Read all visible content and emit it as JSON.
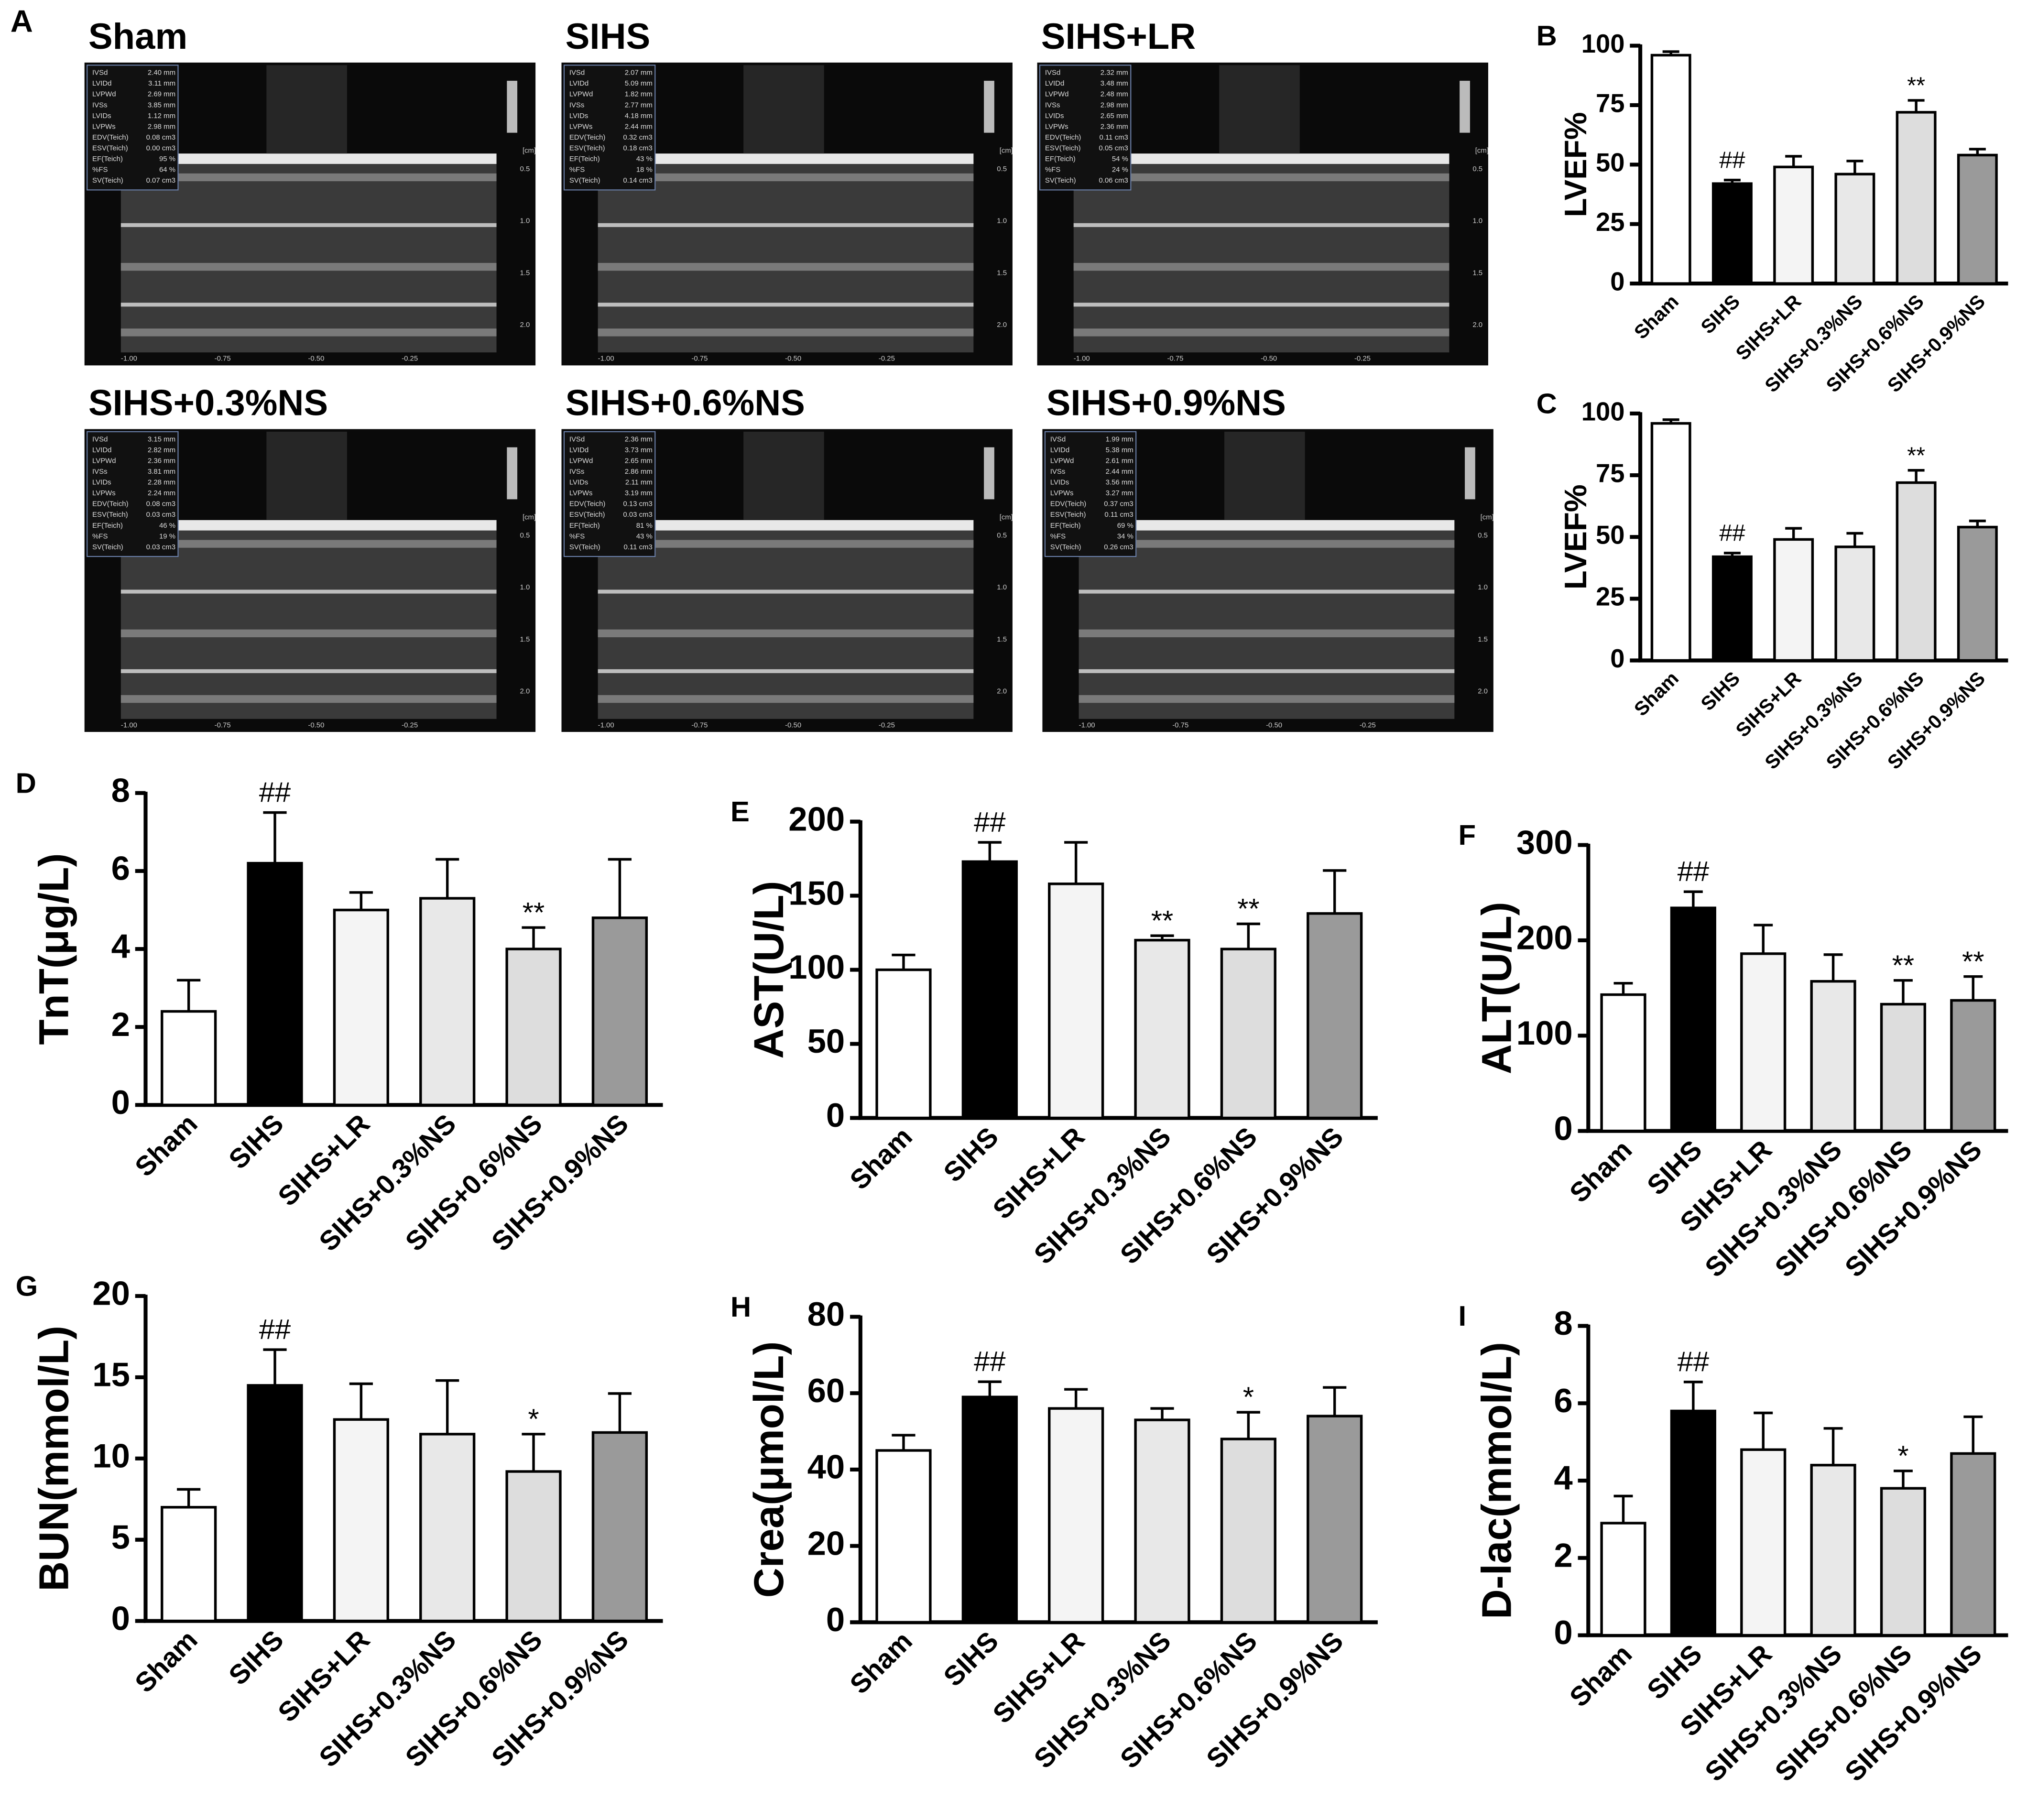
{
  "panel_a": {
    "label": "A",
    "measures": [
      "IVSd",
      "LVIDd",
      "LVPWd",
      "IVSs",
      "LVIDs",
      "LVPWs",
      "EDV(Teich)",
      "ESV(Teich)",
      "EF(Teich)",
      "%FS",
      "SV(Teich)"
    ],
    "depth_unit": "[cm]",
    "depth_ticks": [
      "0.5",
      "1.0",
      "1.5",
      "2.0"
    ],
    "time_ticks": [
      "-1.00",
      "-0.75",
      "-0.50",
      "-0.25"
    ],
    "images": [
      {
        "title": "Sham",
        "readings": [
          "2.40 mm",
          "3.11 mm",
          "2.69 mm",
          "3.85 mm",
          "1.12 mm",
          "2.98 mm",
          "0.08 cm3",
          "0.00 cm3",
          "95 %",
          "64 %",
          "0.07 cm3"
        ]
      },
      {
        "title": "SIHS",
        "readings": [
          "2.07 mm",
          "5.09 mm",
          "1.82 mm",
          "2.77 mm",
          "4.18 mm",
          "2.44 mm",
          "0.32 cm3",
          "0.18 cm3",
          "43 %",
          "18 %",
          "0.14 cm3"
        ]
      },
      {
        "title": "SIHS+LR",
        "readings": [
          "2.32 mm",
          "3.48 mm",
          "2.48 mm",
          "2.98 mm",
          "2.65 mm",
          "2.36 mm",
          "0.11 cm3",
          "0.05 cm3",
          "54 %",
          "24 %",
          "0.06 cm3"
        ]
      },
      {
        "title": "SIHS+0.3%NS",
        "readings": [
          "3.15 mm",
          "2.82 mm",
          "2.36 mm",
          "3.81 mm",
          "2.28 mm",
          "2.24 mm",
          "0.08 cm3",
          "0.03 cm3",
          "46 %",
          "19 %",
          "0.03 cm3"
        ]
      },
      {
        "title": "SIHS+0.6%NS",
        "readings": [
          "2.36 mm",
          "3.73 mm",
          "2.65 mm",
          "2.86 mm",
          "2.11 mm",
          "3.19 mm",
          "0.13 cm3",
          "0.03 cm3",
          "81 %",
          "43 %",
          "0.11 cm3"
        ]
      },
      {
        "title": "SIHS+0.9%NS",
        "readings": [
          "1.99 mm",
          "5.38 mm",
          "2.61 mm",
          "2.44 mm",
          "3.56 mm",
          "3.27 mm",
          "0.37 cm3",
          "0.11 cm3",
          "69 %",
          "34 %",
          "0.26 cm3"
        ]
      }
    ]
  },
  "chart_data": [
    {
      "type": "bar",
      "panel": "B",
      "y_label": "LVEF%",
      "categories": [
        "Sham",
        "SIHS",
        "SIHS+LR",
        "SIHS+0.3%NS",
        "SIHS+0.6%NS",
        "SIHS+0.9%NS"
      ],
      "values": [
        96,
        42,
        49,
        46,
        72,
        54
      ],
      "errors": [
        1.5,
        1.5,
        4.5,
        5.5,
        5,
        2.5
      ],
      "annotations": [
        null,
        "##",
        null,
        null,
        "**",
        null
      ],
      "colors": [
        "#ffffff",
        "#000000",
        "#f4f4f4",
        "#e8e8e8",
        "#dddddd",
        "#9a9a9a"
      ],
      "ylim": [
        0,
        100
      ],
      "yticks": [
        0,
        25,
        50,
        75,
        100
      ]
    },
    {
      "type": "bar",
      "panel": "C",
      "y_label": "LVEF%",
      "categories": [
        "Sham",
        "SIHS",
        "SIHS+LR",
        "SIHS+0.3%NS",
        "SIHS+0.6%NS",
        "SIHS+0.9%NS"
      ],
      "values": [
        96,
        42,
        49,
        46,
        72,
        54
      ],
      "errors": [
        1.5,
        1.5,
        4.5,
        5.5,
        5,
        2.5
      ],
      "annotations": [
        null,
        "##",
        null,
        null,
        "**",
        null
      ],
      "colors": [
        "#ffffff",
        "#000000",
        "#f4f4f4",
        "#e8e8e8",
        "#dddddd",
        "#9a9a9a"
      ],
      "ylim": [
        0,
        100
      ],
      "yticks": [
        0,
        25,
        50,
        75,
        100
      ]
    },
    {
      "type": "bar",
      "panel": "D",
      "y_label": "TnT(μg/L)",
      "categories": [
        "Sham",
        "SIHS",
        "SIHS+LR",
        "SIHS+0.3%NS",
        "SIHS+0.6%NS",
        "SIHS+0.9%NS"
      ],
      "values": [
        2.4,
        6.2,
        5.0,
        5.3,
        4.0,
        4.8
      ],
      "errors": [
        0.8,
        1.3,
        0.45,
        1.0,
        0.55,
        1.5
      ],
      "annotations": [
        null,
        "##",
        null,
        null,
        "**",
        null
      ],
      "colors": [
        "#ffffff",
        "#000000",
        "#f4f4f4",
        "#e8e8e8",
        "#dddddd",
        "#9a9a9a"
      ],
      "ylim": [
        0,
        8
      ],
      "yticks": [
        0,
        2,
        4,
        6,
        8
      ]
    },
    {
      "type": "bar",
      "panel": "E",
      "y_label": "AST(U/L)",
      "categories": [
        "Sham",
        "SIHS",
        "SIHS+LR",
        "SIHS+0.3%NS",
        "SIHS+0.6%NS",
        "SIHS+0.9%NS"
      ],
      "values": [
        100,
        173,
        158,
        120,
        114,
        138
      ],
      "errors": [
        10,
        13,
        28,
        3,
        17,
        29
      ],
      "annotations": [
        null,
        "##",
        null,
        "**",
        "**",
        null
      ],
      "colors": [
        "#ffffff",
        "#000000",
        "#f4f4f4",
        "#e8e8e8",
        "#dddddd",
        "#9a9a9a"
      ],
      "ylim": [
        0,
        200
      ],
      "yticks": [
        0,
        50,
        100,
        150,
        200
      ]
    },
    {
      "type": "bar",
      "panel": "F",
      "y_label": "ALT(U/L)",
      "categories": [
        "Sham",
        "SIHS",
        "SIHS+LR",
        "SIHS+0.3%NS",
        "SIHS+0.6%NS",
        "SIHS+0.9%NS"
      ],
      "values": [
        143,
        234,
        186,
        157,
        133,
        137
      ],
      "errors": [
        12,
        17,
        30,
        28,
        25,
        25
      ],
      "annotations": [
        null,
        "##",
        null,
        null,
        "**",
        "**"
      ],
      "colors": [
        "#ffffff",
        "#000000",
        "#f4f4f4",
        "#e8e8e8",
        "#dddddd",
        "#9a9a9a"
      ],
      "ylim": [
        0,
        300
      ],
      "yticks": [
        0,
        100,
        200,
        300
      ]
    },
    {
      "type": "bar",
      "panel": "G",
      "y_label": "BUN(mmol/L)",
      "categories": [
        "Sham",
        "SIHS",
        "SIHS+LR",
        "SIHS+0.3%NS",
        "SIHS+0.6%NS",
        "SIHS+0.9%NS"
      ],
      "values": [
        7.0,
        14.5,
        12.4,
        11.5,
        9.2,
        11.6
      ],
      "errors": [
        1.1,
        2.2,
        2.2,
        3.3,
        2.3,
        2.4
      ],
      "annotations": [
        null,
        "##",
        null,
        null,
        "*",
        null
      ],
      "colors": [
        "#ffffff",
        "#000000",
        "#f4f4f4",
        "#e8e8e8",
        "#dddddd",
        "#9a9a9a"
      ],
      "ylim": [
        0,
        20
      ],
      "yticks": [
        0,
        5,
        10,
        15,
        20
      ]
    },
    {
      "type": "bar",
      "panel": "H",
      "y_label": "Crea(μmol/L)",
      "categories": [
        "Sham",
        "SIHS",
        "SIHS+LR",
        "SIHS+0.3%NS",
        "SIHS+0.6%NS",
        "SIHS+0.9%NS"
      ],
      "values": [
        45,
        59,
        56,
        53,
        48,
        54
      ],
      "errors": [
        4,
        4,
        5,
        3,
        7,
        7.5
      ],
      "annotations": [
        null,
        "##",
        null,
        null,
        "*",
        null
      ],
      "colors": [
        "#ffffff",
        "#000000",
        "#f4f4f4",
        "#e8e8e8",
        "#dddddd",
        "#9a9a9a"
      ],
      "ylim": [
        0,
        80
      ],
      "yticks": [
        0,
        20,
        40,
        60,
        80
      ]
    },
    {
      "type": "bar",
      "panel": "I",
      "y_label": "D-lac(mmol/L)",
      "categories": [
        "Sham",
        "SIHS",
        "SIHS+LR",
        "SIHS+0.3%NS",
        "SIHS+0.6%NS",
        "SIHS+0.9%NS"
      ],
      "values": [
        2.9,
        5.8,
        4.8,
        4.4,
        3.8,
        4.7
      ],
      "errors": [
        0.7,
        0.75,
        0.95,
        0.95,
        0.45,
        0.95
      ],
      "annotations": [
        null,
        "##",
        null,
        null,
        "*",
        null
      ],
      "colors": [
        "#ffffff",
        "#000000",
        "#f4f4f4",
        "#e8e8e8",
        "#dddddd",
        "#9a9a9a"
      ],
      "ylim": [
        0,
        8
      ],
      "yticks": [
        0,
        2,
        4,
        6,
        8
      ]
    }
  ]
}
